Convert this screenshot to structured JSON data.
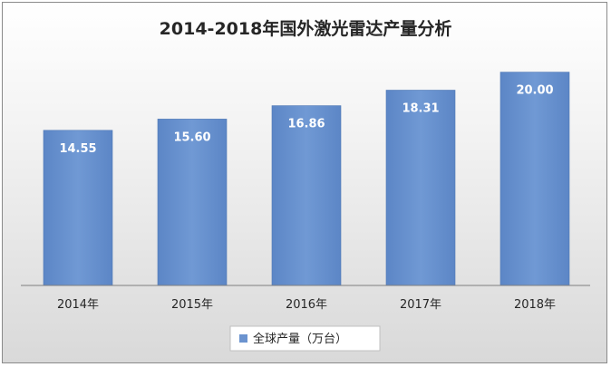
{
  "chart_data": {
    "type": "bar",
    "title": "2014-2018年国外激光雷达产量分析",
    "categories": [
      "2014年",
      "2015年",
      "2016年",
      "2017年",
      "2018年"
    ],
    "series": [
      {
        "name": "全球产量（万台）",
        "values": [
          14.55,
          15.6,
          16.86,
          18.31,
          20.0
        ],
        "data_labels": [
          "14.55",
          "15.60",
          "16.86",
          "18.31",
          "20.00"
        ],
        "color": "#6b93cf"
      }
    ],
    "ylim": [
      0,
      26
    ],
    "grid": false,
    "y_axis_visible": false,
    "legend": "bottom"
  }
}
